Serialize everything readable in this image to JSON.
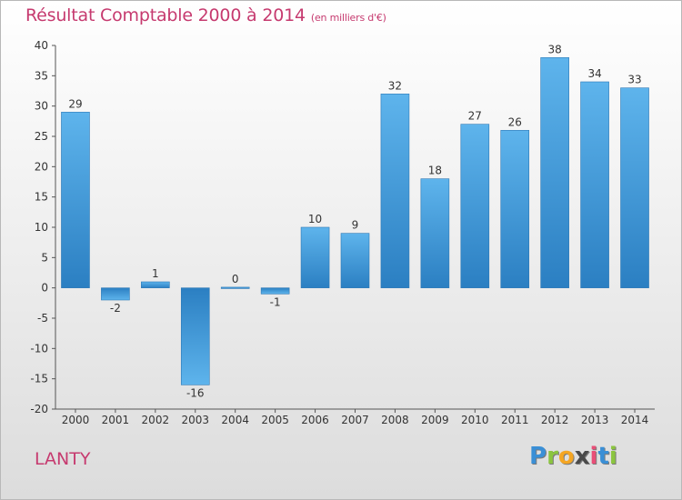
{
  "chart_data": {
    "type": "bar",
    "title": "Résultat Comptable 2000 à 2014",
    "unit_label": "(en milliers d'€)",
    "categories": [
      "2000",
      "2001",
      "2002",
      "2003",
      "2004",
      "2005",
      "2006",
      "2007",
      "2008",
      "2009",
      "2010",
      "2011",
      "2012",
      "2013",
      "2014"
    ],
    "values": [
      29,
      -2,
      1,
      -16,
      0,
      -1,
      10,
      9,
      32,
      18,
      27,
      26,
      38,
      34,
      33
    ],
    "ylim": [
      -20,
      40
    ],
    "yticks": [
      40,
      35,
      30,
      25,
      20,
      15,
      10,
      5,
      0,
      -5,
      -10,
      -15,
      -20
    ],
    "xlabel": "",
    "ylabel": "",
    "grid": false,
    "bar_color": "#3a94d6",
    "title_color": "#c63a6f"
  },
  "commune_name": "LANTY",
  "logo": {
    "letters": [
      "P",
      "r",
      "o",
      "x",
      "i",
      "t",
      "i"
    ],
    "colors": [
      "#3a8fd6",
      "#8bc53f",
      "#f5a623",
      "#4a4a4a",
      "#e94e77",
      "#3a8fd6",
      "#8bc53f"
    ]
  }
}
